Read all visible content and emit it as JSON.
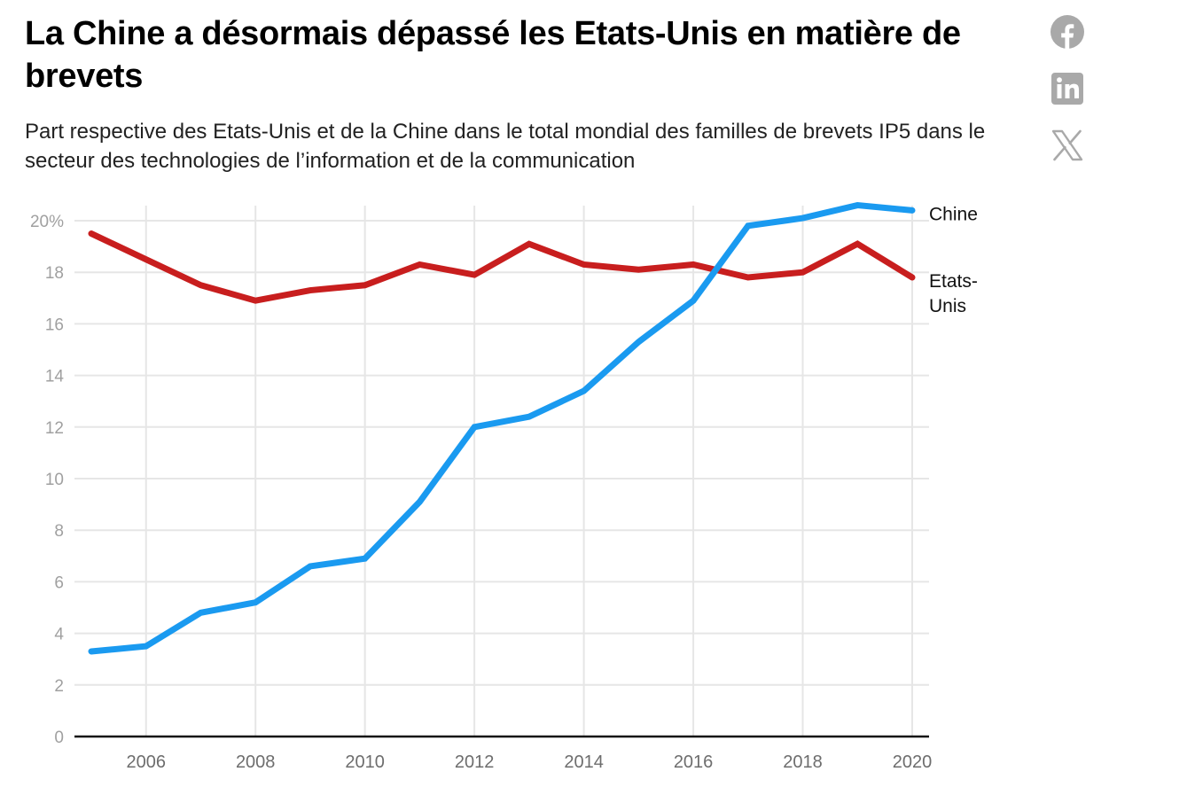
{
  "header": {
    "title": "La Chine a désormais dépassé les Etats-Unis en matière de brevets",
    "subtitle": "Part respective des Etats-Unis et de la Chine dans le total mondial des familles de brevets IP5 dans le secteur des technologies de l’information et de la communication"
  },
  "share": {
    "items": [
      {
        "name": "facebook-icon",
        "label": "Facebook"
      },
      {
        "name": "linkedin-icon",
        "label": "LinkedIn"
      },
      {
        "name": "x-icon",
        "label": "X"
      }
    ],
    "icon_color": "#a9a9a9"
  },
  "chart_data": {
    "type": "line",
    "title": "La Chine a désormais dépassé les Etats-Unis en matière de brevets",
    "subtitle": "Part respective des Etats-Unis et de la Chine dans le total mondial des familles de brevets IP5 dans le secteur des technologies de l’information et de la communication",
    "xlabel": "",
    "ylabel": "",
    "x": [
      2005,
      2006,
      2007,
      2008,
      2009,
      2010,
      2011,
      2012,
      2013,
      2014,
      2015,
      2016,
      2017,
      2018,
      2019,
      2020
    ],
    "xlim": [
      2005,
      2020
    ],
    "ylim": [
      0,
      20
    ],
    "x_ticks": [
      2006,
      2008,
      2010,
      2012,
      2014,
      2016,
      2018,
      2020
    ],
    "x_tick_labels": [
      "2006",
      "2008",
      "2010",
      "2012",
      "2014",
      "2016",
      "2018",
      "2020"
    ],
    "y_ticks": [
      0,
      2,
      4,
      6,
      8,
      10,
      12,
      14,
      16,
      18,
      20
    ],
    "y_tick_labels": [
      "0",
      "2",
      "4",
      "6",
      "8",
      "10",
      "12",
      "14",
      "16",
      "18",
      "20%"
    ],
    "grid": true,
    "legend": "direct labels at line ends (right)",
    "series": [
      {
        "name": "Chine",
        "label": "Chine",
        "color": "#1a9af0",
        "values": [
          3.3,
          3.5,
          4.8,
          5.2,
          6.6,
          6.9,
          9.1,
          12.0,
          12.4,
          13.4,
          15.3,
          16.9,
          19.8,
          20.1,
          20.6,
          20.4
        ]
      },
      {
        "name": "Etats-Unis",
        "label": "Etats-Unis",
        "label_lines": [
          "Etats-",
          "Unis"
        ],
        "color": "#c81e1e",
        "values": [
          19.5,
          18.5,
          17.5,
          16.9,
          17.3,
          17.5,
          18.3,
          17.9,
          19.1,
          18.3,
          18.1,
          18.3,
          17.8,
          18.0,
          19.1,
          17.8
        ]
      }
    ]
  }
}
